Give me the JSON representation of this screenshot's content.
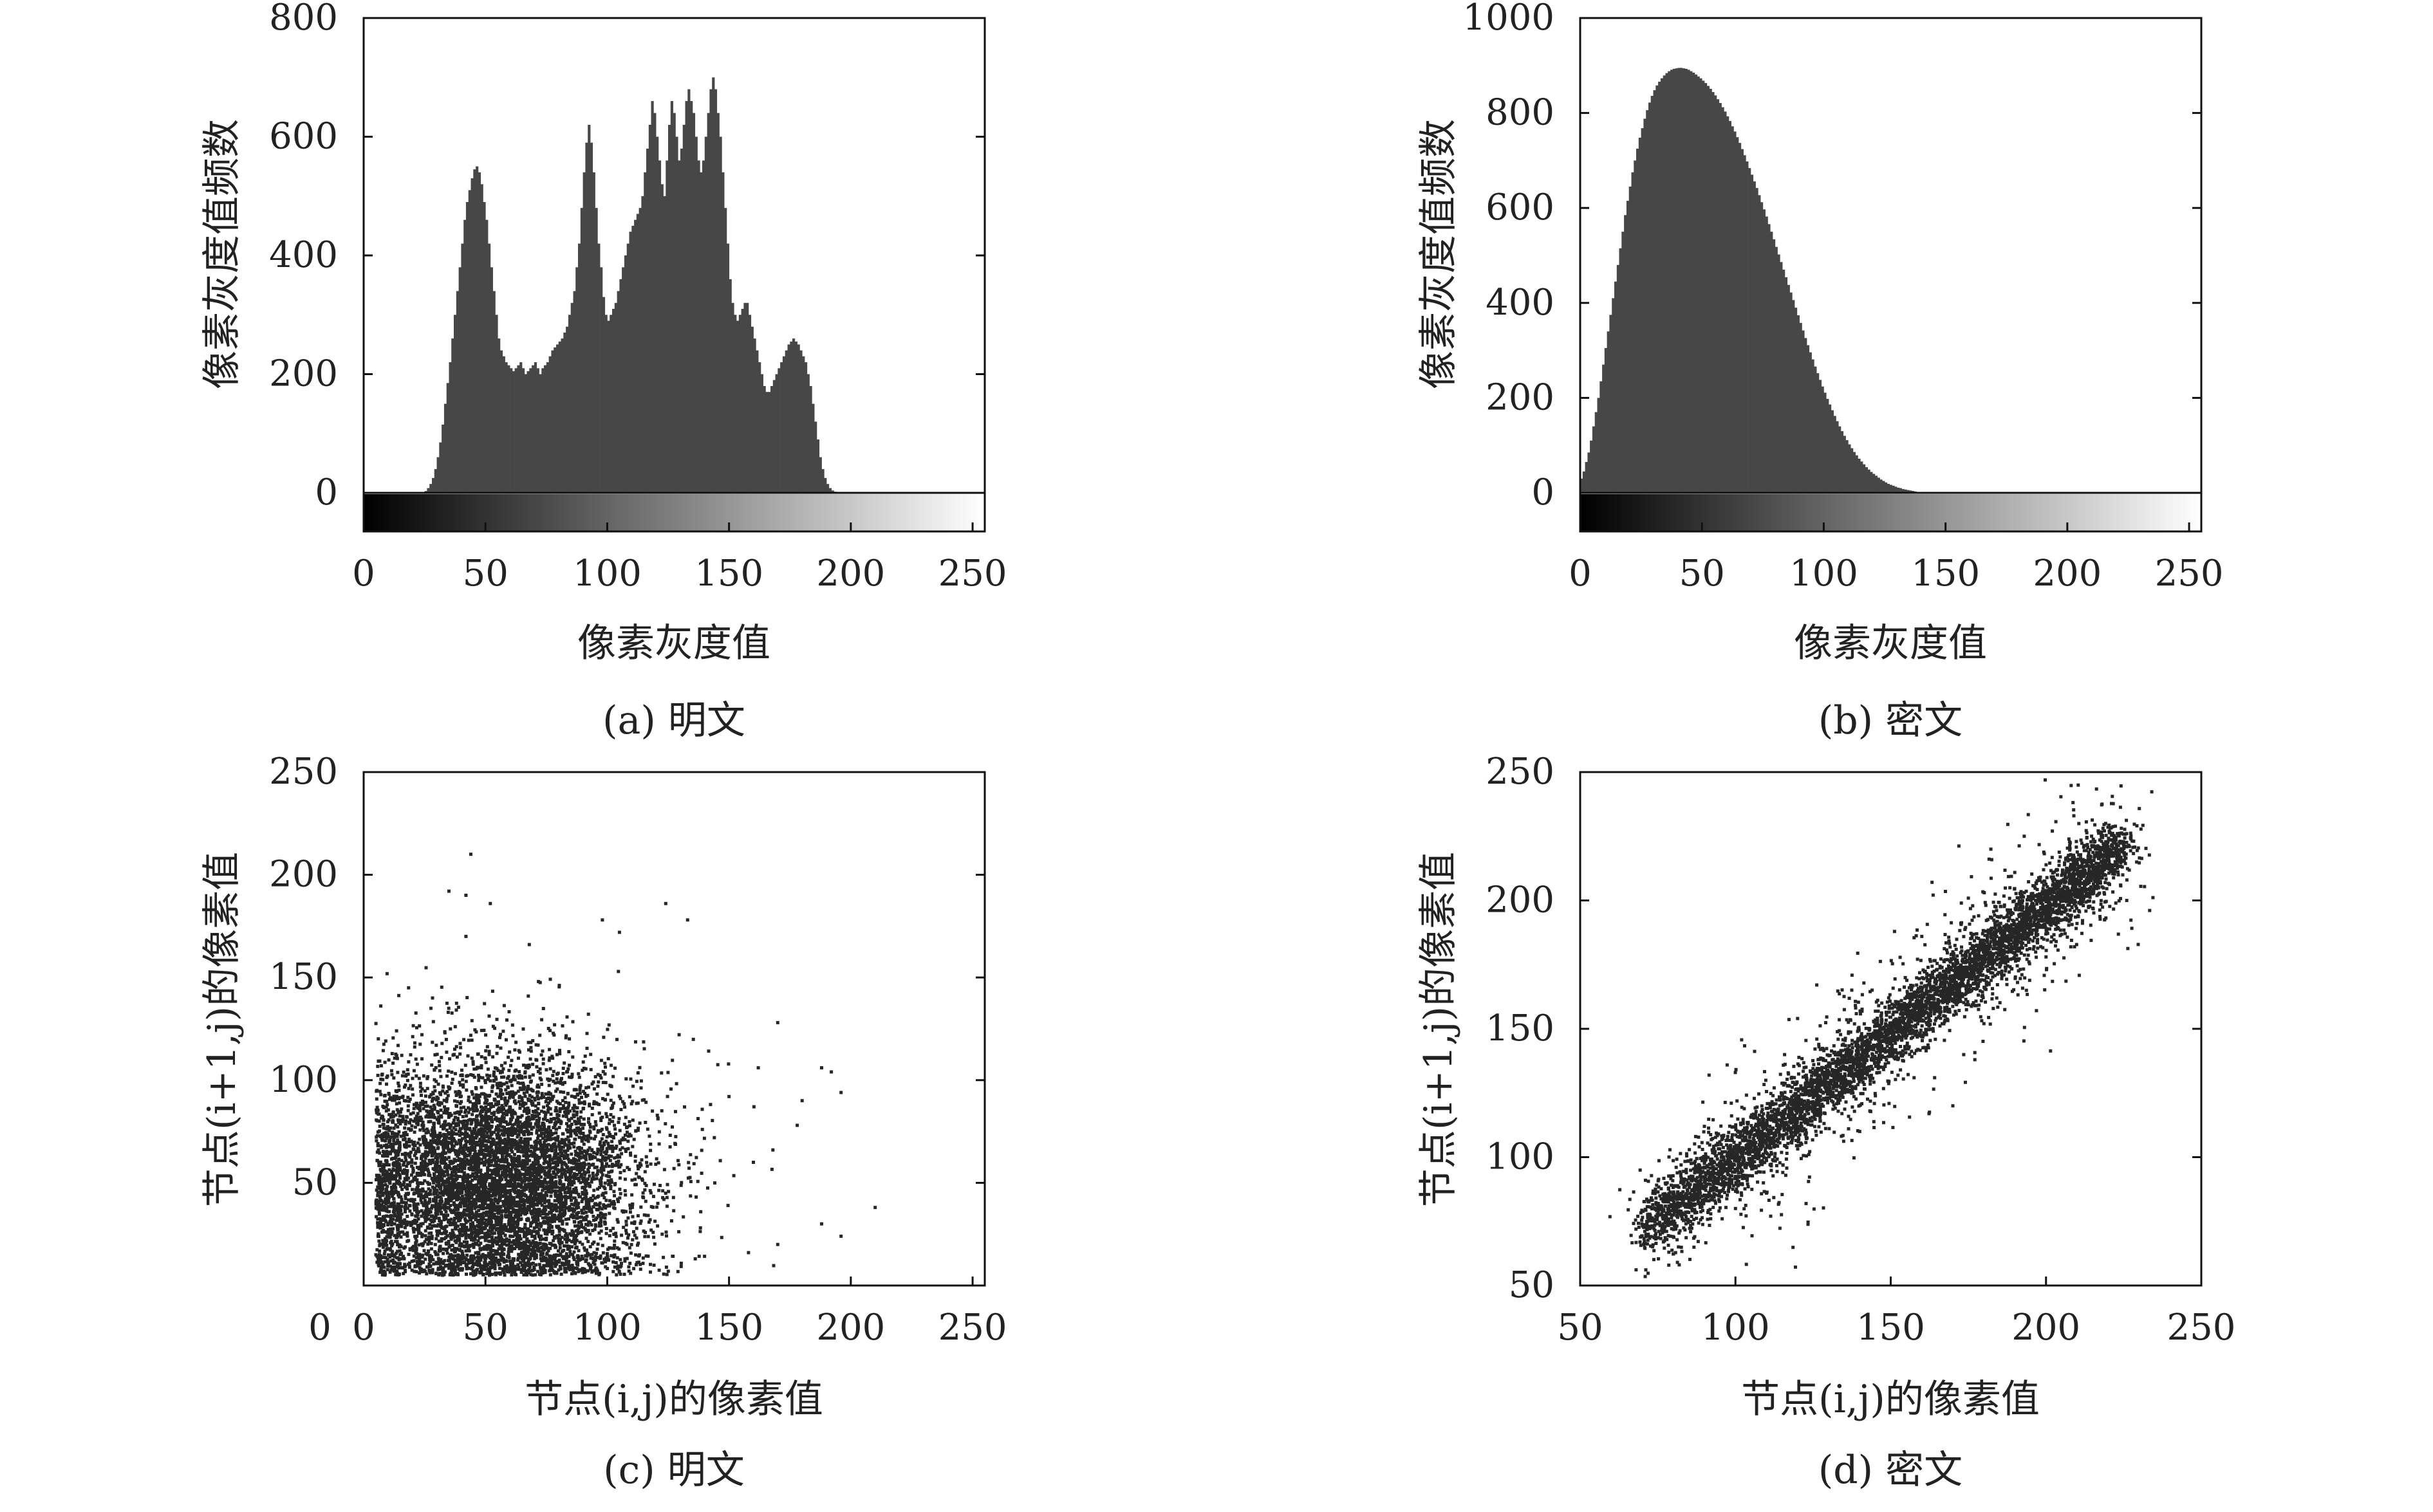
{
  "colors": {
    "bar": "#474747",
    "point": "#262626",
    "axis": "#111111",
    "text": "#222222"
  },
  "chart_data": [
    {
      "type": "bar",
      "caption": "(a) 明文",
      "xlabel": "像素灰度值",
      "ylabel": "像素灰度值频数",
      "xlim": [
        0,
        255
      ],
      "ylim": [
        0,
        800
      ],
      "xticks": [
        0,
        50,
        100,
        150,
        200,
        250
      ],
      "yticks": [
        0,
        200,
        400,
        600,
        800
      ],
      "colorbar": "grayscale 0-255",
      "x_start": 0,
      "bin_width": 1,
      "values": [
        0,
        0,
        0,
        0,
        0,
        0,
        0,
        0,
        0,
        0,
        0,
        0,
        0,
        0,
        0,
        0,
        0,
        0,
        0,
        0,
        0,
        0,
        0,
        0,
        0,
        3,
        8,
        15,
        25,
        40,
        60,
        85,
        115,
        150,
        185,
        220,
        260,
        300,
        340,
        380,
        420,
        460,
        490,
        510,
        530,
        545,
        550,
        540,
        520,
        490,
        460,
        420,
        380,
        340,
        300,
        260,
        240,
        230,
        220,
        215,
        210,
        205,
        210,
        215,
        220,
        210,
        200,
        205,
        210,
        215,
        220,
        210,
        200,
        210,
        215,
        220,
        230,
        240,
        245,
        250,
        255,
        260,
        270,
        280,
        300,
        320,
        340,
        380,
        420,
        480,
        540,
        590,
        620,
        590,
        540,
        480,
        420,
        380,
        330,
        300,
        290,
        300,
        310,
        320,
        340,
        360,
        380,
        400,
        420,
        440,
        450,
        460,
        470,
        480,
        500,
        540,
        580,
        620,
        660,
        640,
        600,
        560,
        520,
        500,
        560,
        620,
        660,
        640,
        600,
        560,
        580,
        620,
        660,
        680,
        660,
        640,
        600,
        560,
        540,
        560,
        600,
        640,
        680,
        700,
        680,
        640,
        600,
        540,
        480,
        420,
        360,
        320,
        300,
        290,
        300,
        310,
        320,
        320,
        300,
        280,
        260,
        240,
        220,
        200,
        180,
        170,
        170,
        180,
        190,
        200,
        210,
        220,
        230,
        240,
        250,
        255,
        260,
        255,
        250,
        240,
        230,
        220,
        200,
        180,
        150,
        120,
        90,
        60,
        40,
        25,
        15,
        8,
        4,
        2,
        0,
        0,
        0,
        0,
        0,
        0,
        0,
        0,
        0,
        0,
        0,
        0,
        0,
        0,
        0,
        0,
        0,
        0,
        0,
        0,
        0,
        0,
        0,
        0,
        0,
        0,
        0,
        0,
        0,
        0,
        0,
        0,
        0,
        0,
        0,
        0,
        0,
        0,
        0,
        0,
        0,
        0,
        0,
        0,
        0,
        0,
        0,
        0,
        0,
        0,
        0,
        0
      ]
    },
    {
      "type": "bar",
      "caption": "(b) 密文",
      "xlabel": "像素灰度值",
      "ylabel": "像素灰度值频数",
      "xlim": [
        0,
        255
      ],
      "ylim": [
        0,
        1000
      ],
      "xticks": [
        0,
        50,
        100,
        150,
        200,
        250
      ],
      "yticks": [
        0,
        200,
        400,
        600,
        800,
        1000
      ],
      "colorbar": "grayscale 0-255",
      "x_start": 0,
      "bin_width": 1,
      "values": [
        30,
        45,
        65,
        85,
        110,
        140,
        170,
        200,
        235,
        270,
        305,
        340,
        375,
        410,
        445,
        480,
        515,
        550,
        585,
        615,
        645,
        675,
        700,
        725,
        748,
        768,
        788,
        806,
        822,
        836,
        848,
        858,
        866,
        873,
        879,
        884,
        888,
        891,
        893,
        894,
        895,
        895,
        894,
        893,
        891,
        888,
        885,
        881,
        877,
        873,
        868,
        863,
        857,
        851,
        844,
        837,
        829,
        821,
        812,
        803,
        793,
        783,
        772,
        761,
        749,
        737,
        724,
        711,
        698,
        684,
        670,
        656,
        642,
        627,
        612,
        597,
        582,
        566,
        550,
        534,
        518,
        502,
        486,
        470,
        454,
        438,
        422,
        406,
        390,
        374,
        358,
        342,
        326,
        311,
        296,
        281,
        266,
        252,
        238,
        224,
        211,
        198,
        186,
        174,
        162,
        151,
        140,
        130,
        120,
        111,
        102,
        94,
        86,
        79,
        72,
        66,
        60,
        54,
        49,
        44,
        40,
        36,
        32,
        28,
        25,
        22,
        19,
        17,
        15,
        13,
        11,
        10,
        8,
        7,
        6,
        5,
        4,
        3,
        2,
        2,
        1,
        1,
        1,
        1,
        0,
        0,
        0,
        0,
        0,
        0,
        0,
        0,
        0,
        0,
        0,
        0,
        0,
        0,
        0,
        0,
        0,
        0,
        0,
        0,
        0,
        0,
        0,
        0,
        0,
        0,
        0,
        0,
        0,
        0,
        0,
        0,
        0,
        0,
        0,
        0,
        0,
        0,
        0,
        0,
        0,
        0,
        0,
        0,
        0,
        0,
        0,
        0,
        0,
        0,
        0,
        0,
        0,
        0,
        0,
        0,
        0,
        0,
        0,
        0,
        0,
        0,
        0,
        0,
        0,
        0,
        0,
        0,
        0,
        0,
        0,
        0,
        0,
        0,
        0,
        0,
        0,
        0,
        0,
        0,
        0,
        0,
        0,
        0,
        0,
        0,
        0,
        0,
        0,
        0,
        0,
        0,
        0,
        0,
        0,
        0,
        0,
        0,
        0,
        0,
        0,
        0,
        0,
        0,
        0,
        0,
        0,
        0,
        0,
        0,
        0,
        0
      ]
    },
    {
      "type": "scatter",
      "caption": "(c) 明文",
      "xlabel": "节点(i,j)的像素值",
      "ylabel": "节点(i+1,j)的像素值",
      "xlim": [
        0,
        255
      ],
      "ylim": [
        0,
        250
      ],
      "xticks": [
        0,
        50,
        100,
        150,
        200,
        250
      ],
      "yticks": [
        50,
        100,
        150,
        200,
        250
      ],
      "cluster": {
        "center": [
          55,
          50
        ],
        "spread": [
          30,
          30
        ],
        "n": 7000
      },
      "outliers": [
        [
          44,
          210
        ],
        [
          35,
          192
        ],
        [
          42,
          190
        ],
        [
          52,
          186
        ],
        [
          124,
          186
        ],
        [
          133,
          178
        ],
        [
          98,
          178
        ],
        [
          105,
          172
        ],
        [
          68,
          166
        ],
        [
          42,
          170
        ],
        [
          170,
          128
        ],
        [
          162,
          106
        ],
        [
          188,
          106
        ],
        [
          192,
          104
        ],
        [
          196,
          94
        ],
        [
          150,
          92
        ],
        [
          180,
          90
        ],
        [
          178,
          78
        ],
        [
          168,
          66
        ],
        [
          160,
          60
        ],
        [
          210,
          38
        ],
        [
          196,
          24
        ],
        [
          188,
          30
        ],
        [
          170,
          20
        ],
        [
          158,
          16
        ]
      ]
    },
    {
      "type": "scatter",
      "caption": "(d) 密文",
      "xlabel": "节点(i,j)的像素值",
      "ylabel": "节点(i+1,j)的像素值",
      "xlim": [
        50,
        250
      ],
      "ylim": [
        50,
        250
      ],
      "xticks": [
        50,
        100,
        150,
        200,
        250
      ],
      "yticks": [
        50,
        100,
        150,
        200,
        250
      ],
      "cluster": {
        "line_from": [
          70,
          70
        ],
        "line_to": [
          225,
          222
        ],
        "spread": 6,
        "n": 6000
      },
      "outliers": [
        [
          170,
          120
        ],
        [
          212,
          198
        ],
        [
          222,
          212
        ],
        [
          224,
          206
        ],
        [
          226,
          200
        ],
        [
          90,
          112
        ],
        [
          180,
          152
        ],
        [
          110,
          86
        ],
        [
          140,
          110
        ],
        [
          160,
          186
        ],
        [
          200,
          178
        ],
        [
          120,
          154
        ],
        [
          100,
          80
        ]
      ]
    }
  ]
}
